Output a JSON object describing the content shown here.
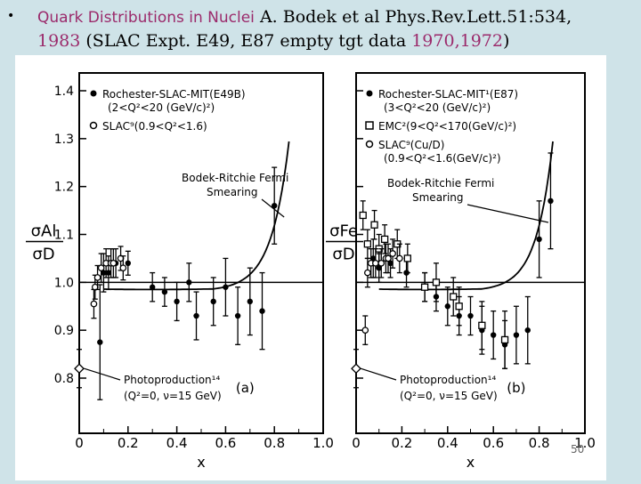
{
  "title": {
    "bullet": "•",
    "highlight_title": "Quark Distributions in Nuclei",
    "citation": " A. Bodek et al Phys.Rev.Lett.51:534,",
    "year": "1983",
    "experiment": "   (SLAC Expt. E49, E87 empty tgt data ",
    "data_years": "1970,1972",
    "close": ")"
  },
  "page_number": "50",
  "colors": {
    "background": "#cfe3e8",
    "highlight": "#9b2a6b",
    "ink": "#000000"
  },
  "chart_data": [
    {
      "type": "scatter",
      "panel_label": "(a)",
      "ylabel_num": "σAl",
      "ylabel_den": "σD",
      "xlabel": "x",
      "xlim": [
        0,
        1.0
      ],
      "ylim": [
        0.75,
        1.42
      ],
      "x_ticks": [
        "0",
        "0.2",
        "0.4",
        "0.6",
        "0.8",
        "1.0"
      ],
      "y_ticks": [
        "0.8",
        "0.9",
        "1.0",
        "1.1",
        "1.2",
        "1.3",
        "1.4"
      ],
      "reference_line": 1.0,
      "legend": [
        {
          "marker": "filled-circle",
          "line1": "Rochester-SLAC-MIT(E49B)",
          "line2": "(2<Q²<20 (GeV/c)²)"
        },
        {
          "marker": "open-circle",
          "line1": "SLAC⁹(0.9<Q²<1.6)",
          "line2": ""
        }
      ],
      "annotations": [
        {
          "text1": "Bodek-Ritchie Fermi",
          "text2": "Smearing"
        },
        {
          "text1": "Photoproduction¹⁴",
          "text2": "(Q²=0, ν=15 GeV)"
        }
      ],
      "series": [
        {
          "marker": "filled-circle",
          "points": [
            {
              "x": 0.085,
              "y": 0.875,
              "err": 0.12
            },
            {
              "x": 0.1,
              "y": 1.02,
              "err": 0.04
            },
            {
              "x": 0.12,
              "y": 1.02,
              "err": 0.035
            },
            {
              "x": 0.15,
              "y": 1.04,
              "err": 0.03
            },
            {
              "x": 0.2,
              "y": 1.04,
              "err": 0.025
            },
            {
              "x": 0.3,
              "y": 0.99,
              "err": 0.03
            },
            {
              "x": 0.35,
              "y": 0.98,
              "err": 0.03
            },
            {
              "x": 0.4,
              "y": 0.96,
              "err": 0.04
            },
            {
              "x": 0.45,
              "y": 1.0,
              "err": 0.04
            },
            {
              "x": 0.48,
              "y": 0.93,
              "err": 0.05
            },
            {
              "x": 0.55,
              "y": 0.96,
              "err": 0.05
            },
            {
              "x": 0.6,
              "y": 0.99,
              "err": 0.06
            },
            {
              "x": 0.65,
              "y": 0.93,
              "err": 0.06
            },
            {
              "x": 0.7,
              "y": 0.96,
              "err": 0.07
            },
            {
              "x": 0.75,
              "y": 0.94,
              "err": 0.08
            },
            {
              "x": 0.8,
              "y": 1.16,
              "err": 0.08
            }
          ]
        },
        {
          "marker": "open-circle",
          "points": [
            {
              "x": 0.06,
              "y": 0.955,
              "err": 0.03
            },
            {
              "x": 0.065,
              "y": 0.99,
              "err": 0.025
            },
            {
              "x": 0.075,
              "y": 1.01,
              "err": 0.025
            },
            {
              "x": 0.09,
              "y": 1.03,
              "err": 0.03
            },
            {
              "x": 0.11,
              "y": 1.04,
              "err": 0.03
            },
            {
              "x": 0.13,
              "y": 1.04,
              "err": 0.03
            },
            {
              "x": 0.14,
              "y": 1.04,
              "err": 0.03
            },
            {
              "x": 0.17,
              "y": 1.05,
              "err": 0.025
            },
            {
              "x": 0.18,
              "y": 1.03,
              "err": 0.025
            }
          ]
        },
        {
          "marker": "open-diamond",
          "points": [
            {
              "x": 0.0,
              "y": 0.82,
              "err": 0.04
            }
          ]
        }
      ]
    },
    {
      "type": "scatter",
      "panel_label": "(b)",
      "ylabel_num": "σFe",
      "ylabel_den": "σD",
      "xlabel": "x",
      "xlim": [
        0,
        1.0
      ],
      "ylim": [
        0.75,
        1.42
      ],
      "x_ticks": [
        "0",
        "0.2",
        "0.4",
        "0.6",
        "0.8",
        "1.0"
      ],
      "y_ticks": [],
      "reference_line": 1.0,
      "legend": [
        {
          "marker": "filled-circle",
          "line1": "Rochester-SLAC-MIT¹(E87)",
          "line2": "(3<Q²<20 (GeV/c)²)"
        },
        {
          "marker": "open-square",
          "line1": "EMC²(9<Q²<170(GeV/c)²)",
          "line2": ""
        },
        {
          "marker": "open-circle",
          "line1": "SLAC⁹(Cu/D)",
          "line2": "(0.9<Q²<1.6(GeV/c)²)"
        }
      ],
      "annotations": [
        {
          "text1": "Bodek-Ritchie Fermi",
          "text2": "Smearing"
        },
        {
          "text1": "Photoproduction¹⁴",
          "text2": "(Q²=0, ν=15 GeV)"
        }
      ],
      "series": [
        {
          "marker": "filled-circle",
          "points": [
            {
              "x": 0.075,
              "y": 1.05,
              "err": 0.04
            },
            {
              "x": 0.1,
              "y": 1.03,
              "err": 0.03
            },
            {
              "x": 0.15,
              "y": 1.04,
              "err": 0.03
            },
            {
              "x": 0.22,
              "y": 1.02,
              "err": 0.03
            },
            {
              "x": 0.3,
              "y": 0.99,
              "err": 0.03
            },
            {
              "x": 0.35,
              "y": 0.97,
              "err": 0.03
            },
            {
              "x": 0.4,
              "y": 0.95,
              "err": 0.04
            },
            {
              "x": 0.45,
              "y": 0.93,
              "err": 0.04
            },
            {
              "x": 0.5,
              "y": 0.93,
              "err": 0.04
            },
            {
              "x": 0.55,
              "y": 0.9,
              "err": 0.05
            },
            {
              "x": 0.6,
              "y": 0.89,
              "err": 0.05
            },
            {
              "x": 0.65,
              "y": 0.87,
              "err": 0.05
            },
            {
              "x": 0.7,
              "y": 0.89,
              "err": 0.06
            },
            {
              "x": 0.75,
              "y": 0.9,
              "err": 0.07
            },
            {
              "x": 0.8,
              "y": 1.09,
              "err": 0.08
            },
            {
              "x": 0.85,
              "y": 1.17,
              "err": 0.1
            }
          ]
        },
        {
          "marker": "open-square",
          "points": [
            {
              "x": 0.03,
              "y": 1.14,
              "err": 0.03
            },
            {
              "x": 0.05,
              "y": 1.08,
              "err": 0.03
            },
            {
              "x": 0.08,
              "y": 1.12,
              "err": 0.03
            },
            {
              "x": 0.1,
              "y": 1.07,
              "err": 0.03
            },
            {
              "x": 0.125,
              "y": 1.09,
              "err": 0.03
            },
            {
              "x": 0.18,
              "y": 1.08,
              "err": 0.03
            },
            {
              "x": 0.225,
              "y": 1.05,
              "err": 0.03
            },
            {
              "x": 0.3,
              "y": 0.99,
              "err": 0.03
            },
            {
              "x": 0.35,
              "y": 1.0,
              "err": 0.04
            },
            {
              "x": 0.425,
              "y": 0.97,
              "err": 0.04
            },
            {
              "x": 0.45,
              "y": 0.95,
              "err": 0.04
            },
            {
              "x": 0.55,
              "y": 0.91,
              "err": 0.05
            },
            {
              "x": 0.65,
              "y": 0.88,
              "err": 0.06
            }
          ]
        },
        {
          "marker": "open-circle",
          "points": [
            {
              "x": 0.04,
              "y": 0.9,
              "err": 0.03
            },
            {
              "x": 0.05,
              "y": 1.02,
              "err": 0.03
            },
            {
              "x": 0.065,
              "y": 1.04,
              "err": 0.03
            },
            {
              "x": 0.085,
              "y": 1.04,
              "err": 0.03
            },
            {
              "x": 0.11,
              "y": 1.04,
              "err": 0.03
            },
            {
              "x": 0.13,
              "y": 1.05,
              "err": 0.03
            },
            {
              "x": 0.14,
              "y": 1.05,
              "err": 0.03
            },
            {
              "x": 0.16,
              "y": 1.06,
              "err": 0.03
            },
            {
              "x": 0.19,
              "y": 1.05,
              "err": 0.03
            }
          ]
        },
        {
          "marker": "open-diamond",
          "points": [
            {
              "x": 0.0,
              "y": 0.82,
              "err": 0.04
            }
          ]
        }
      ]
    }
  ]
}
